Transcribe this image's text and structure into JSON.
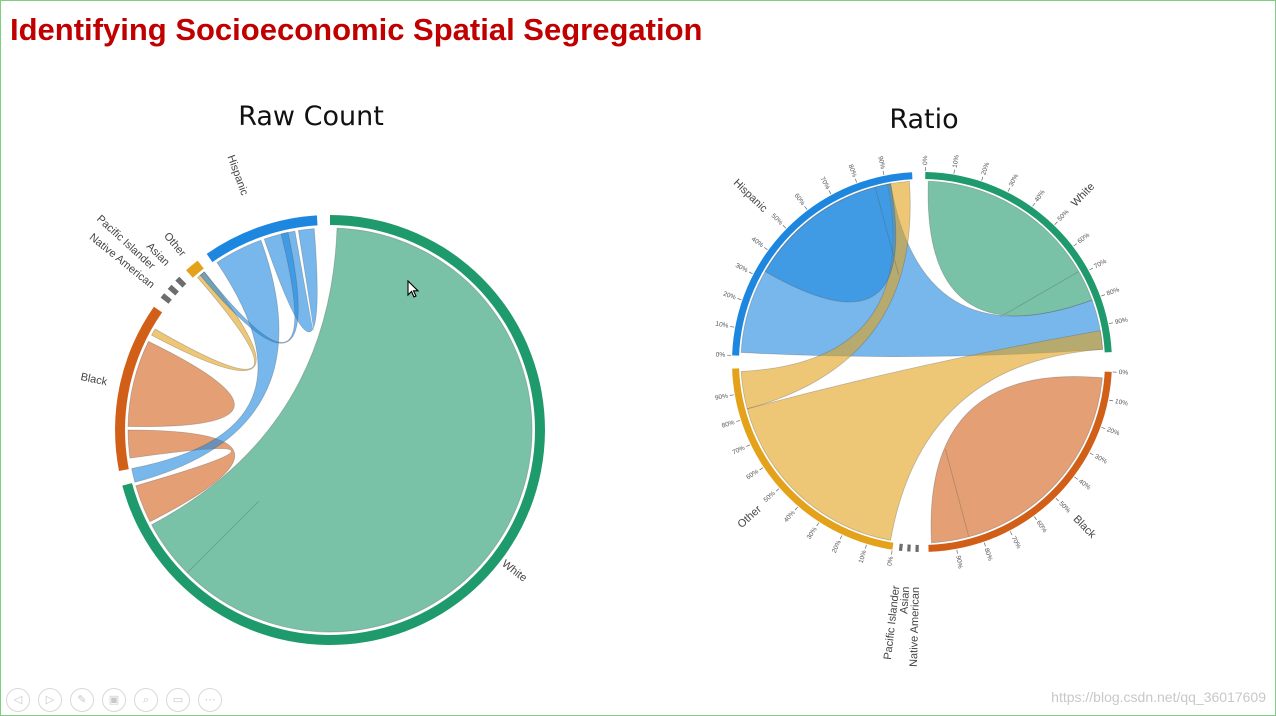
{
  "slide": {
    "title": "Identifying Socioeconomic Spatial Segregation"
  },
  "watermark": "https://blog.csdn.net/qq_36017609",
  "toolbar": [
    {
      "name": "previous-slide-icon",
      "glyph": "◁"
    },
    {
      "name": "next-slide-icon",
      "glyph": "▷"
    },
    {
      "name": "pen-icon",
      "glyph": "✎"
    },
    {
      "name": "slides-grid-icon",
      "glyph": "▣"
    },
    {
      "name": "zoom-icon",
      "glyph": "⌕"
    },
    {
      "name": "screen-icon",
      "glyph": "▭"
    },
    {
      "name": "more-options-icon",
      "glyph": "⋯"
    }
  ],
  "colors": {
    "White": "#1f9a6c",
    "Black": "#d25f17",
    "Hispanic": "#1d87e0",
    "Other": "#e3a21a",
    "Asian": "#6d6d6d",
    "Pacific Islander": "#6d6d6d",
    "Native American": "#6d6d6d",
    "title": "#c00000"
  },
  "chart_data": [
    {
      "type": "chord",
      "title": "Raw Count",
      "groups": [
        "White",
        "Black",
        "Native American",
        "Pacific Islander",
        "Asian",
        "Other",
        "Hispanic"
      ],
      "group_share": [
        0.79,
        0.1,
        0.004,
        0.004,
        0.004,
        0.01,
        0.075
      ],
      "links": [
        {
          "source": "White",
          "target": "White",
          "value": 0.7
        },
        {
          "source": "White",
          "target": "Black",
          "value": 0.04
        },
        {
          "source": "White",
          "target": "Hispanic",
          "value": 0.04
        },
        {
          "source": "White",
          "target": "Other",
          "value": 0.005
        },
        {
          "source": "Black",
          "target": "Black",
          "value": 0.05
        },
        {
          "source": "Hispanic",
          "target": "Hispanic",
          "value": 0.025
        },
        {
          "source": "Hispanic",
          "target": "Other",
          "value": 0.004
        }
      ]
    },
    {
      "type": "chord",
      "title": "Ratio",
      "groups": [
        "White",
        "Black",
        "Native American",
        "Asian",
        "Pacific Islander",
        "Other",
        "Hispanic"
      ],
      "axis_ticks": [
        "0%",
        "10%",
        "20%",
        "30%",
        "40%",
        "50%",
        "60%",
        "70%",
        "80%",
        "90%"
      ],
      "links": [
        {
          "source": "White",
          "target": "White",
          "value_pct": 80
        },
        {
          "source": "White",
          "target": "Hispanic",
          "value_pct": 10
        },
        {
          "source": "White",
          "target": "Other",
          "value_pct": 5
        },
        {
          "source": "Black",
          "target": "Black",
          "value_pct": 85
        },
        {
          "source": "Black",
          "target": "Other",
          "value_pct": 10
        },
        {
          "source": "Hispanic",
          "target": "Hispanic",
          "value_pct": 45
        },
        {
          "source": "Hispanic",
          "target": "Other",
          "value_pct": 5
        },
        {
          "source": "Other",
          "target": "Other",
          "value_pct": 60
        }
      ]
    }
  ]
}
